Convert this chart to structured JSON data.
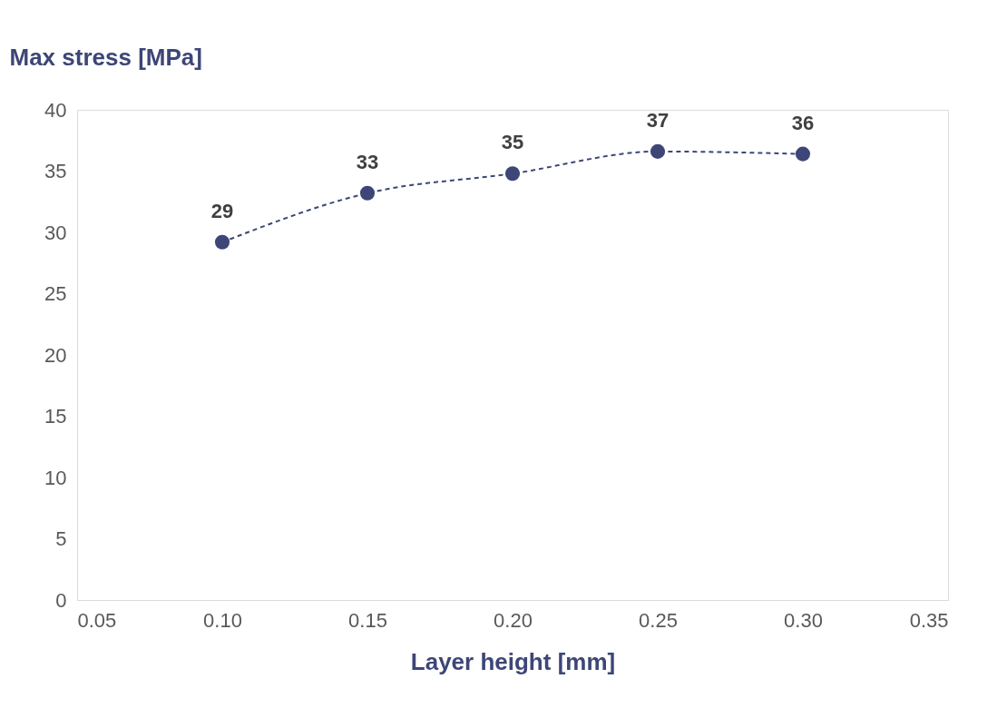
{
  "chart_data": {
    "type": "line",
    "ylabel": "Max stress [MPa]",
    "xlabel": "Layer height [mm]",
    "x": [
      0.1,
      0.15,
      0.2,
      0.25,
      0.3
    ],
    "series": [
      {
        "color": "#3d4677",
        "values": [
          29.2,
          33.2,
          34.8,
          36.6,
          36.4
        ],
        "value_labels": [
          "29",
          "33",
          "35",
          "37",
          "36"
        ]
      }
    ],
    "xlim": [
      0.05,
      0.35
    ],
    "xticks": [
      {
        "value": 0.05,
        "label": "0.05"
      },
      {
        "value": 0.1,
        "label": "0.10"
      },
      {
        "value": 0.15,
        "label": "0.15"
      },
      {
        "value": 0.2,
        "label": "0.20"
      },
      {
        "value": 0.25,
        "label": "0.25"
      },
      {
        "value": 0.3,
        "label": "0.30"
      },
      {
        "value": 0.35,
        "label": "0.35"
      }
    ],
    "ylim": [
      0,
      40
    ],
    "yticks": [
      0,
      5,
      10,
      15,
      20,
      25,
      30,
      35,
      40
    ],
    "grid": false,
    "marker": "circle",
    "line_style": "dashed"
  }
}
